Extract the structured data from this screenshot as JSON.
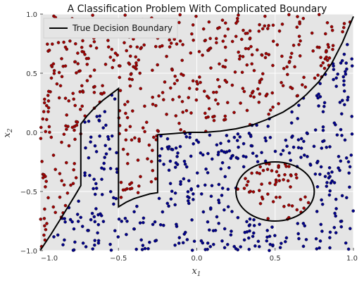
{
  "chart_data": {
    "type": "scatter",
    "title": "A Classification Problem With Complicated Boundary",
    "xlabel": "x",
    "xlabel_sub": "1",
    "ylabel": "x",
    "ylabel_sub": "2",
    "xlim": [
      -1.0,
      1.0
    ],
    "ylim": [
      -1.0,
      1.0
    ],
    "xticks": [
      -1.0,
      -0.5,
      0.0,
      0.5,
      1.0
    ],
    "xtick_labels": [
      "−1.0",
      "−0.5",
      "0.0",
      "0.5",
      "1.0"
    ],
    "yticks": [
      -1.0,
      -0.5,
      0.0,
      0.5,
      1.0
    ],
    "ytick_labels": [
      "−1.0",
      "−0.5",
      "0.0",
      "0.5",
      "1.0"
    ],
    "grid": true,
    "legend": {
      "position": "top-left",
      "entries": [
        "True Decision Boundary"
      ]
    },
    "colors": {
      "background": "#e5e5e5",
      "grid": "#ffffff",
      "class_above": "#a00000",
      "class_below": "#00008b",
      "boundary": "#000000"
    },
    "series": [
      {
        "class": "above",
        "color": "#a00000"
      },
      {
        "class": "below",
        "color": "#00008b"
      }
    ],
    "boundary": {
      "segments": [
        [
          [
            -1.0,
            -1.0
          ],
          [
            -0.93,
            -0.86
          ],
          [
            -0.85,
            -0.69
          ],
          [
            -0.78,
            -0.54
          ],
          [
            -0.74,
            -0.45
          ],
          [
            -0.74,
            0.07
          ]
        ],
        [
          [
            -0.74,
            0.07
          ],
          [
            -0.7,
            0.14
          ],
          [
            -0.65,
            0.21
          ],
          [
            -0.6,
            0.27
          ],
          [
            -0.55,
            0.32
          ],
          [
            -0.5,
            0.37
          ],
          [
            -0.5,
            -0.63
          ],
          [
            -0.45,
            -0.59
          ],
          [
            -0.4,
            -0.56
          ],
          [
            -0.35,
            -0.54
          ],
          [
            -0.3,
            -0.52
          ],
          [
            -0.25,
            -0.51
          ],
          [
            -0.25,
            -0.02
          ]
        ],
        [
          [
            -0.25,
            -0.02
          ],
          [
            -0.15,
            -0.01
          ],
          [
            -0.05,
            0.0
          ],
          [
            0.05,
            0.0
          ],
          [
            0.15,
            0.01
          ],
          [
            0.25,
            0.03
          ],
          [
            0.35,
            0.06
          ],
          [
            0.45,
            0.11
          ],
          [
            0.55,
            0.17
          ],
          [
            0.62,
            0.23
          ],
          [
            0.7,
            0.32
          ],
          [
            0.78,
            0.43
          ],
          [
            0.86,
            0.58
          ],
          [
            0.93,
            0.76
          ],
          [
            1.0,
            0.98
          ]
        ]
      ],
      "circle": {
        "cx": 0.5,
        "cy": -0.5,
        "r": 0.25
      }
    }
  }
}
